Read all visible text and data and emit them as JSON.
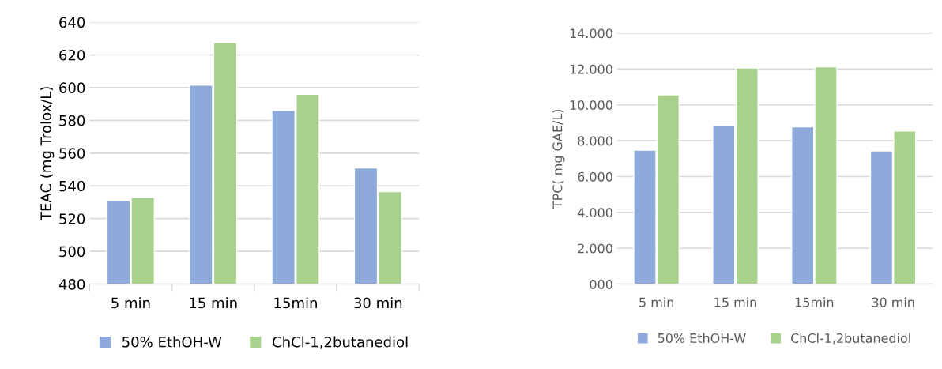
{
  "chart_data": [
    {
      "type": "bar",
      "ylabel": "TEAC (mg Trolox/L)",
      "categories": [
        "5 min",
        "15 min",
        "15min",
        "30 min"
      ],
      "series": [
        {
          "name": "50% EthOH-W",
          "color": "#8eaadb",
          "values": [
            531,
            601.5,
            586,
            551
          ]
        },
        {
          "name": "ChCl-1,2butanediol",
          "color": "#a9d18e",
          "values": [
            533,
            627.5,
            596,
            536.5
          ]
        }
      ],
      "ylim": [
        480,
        640
      ],
      "yticks": [
        480,
        500,
        520,
        540,
        560,
        580,
        600,
        620,
        640
      ],
      "grid": "y",
      "legend": "bottom"
    },
    {
      "type": "bar",
      "ylabel": "TPC( mg GAE/L)",
      "categories": [
        "5 min",
        "15 min",
        "15min",
        "30 min"
      ],
      "series": [
        {
          "name": "50% EthOH-W",
          "color": "#8eaadb",
          "values": [
            7470,
            8840,
            8770,
            7430
          ]
        },
        {
          "name": "ChCl-1,2butanediol",
          "color": "#a9d18e",
          "values": [
            10560,
            12060,
            12120,
            8540
          ]
        }
      ],
      "ylim": [
        0,
        14000
      ],
      "yticks": [
        {
          "value": 0,
          "label": "000"
        },
        {
          "value": 2000,
          "label": "2.000"
        },
        {
          "value": 4000,
          "label": "4.000"
        },
        {
          "value": 6000,
          "label": "6.000"
        },
        {
          "value": 8000,
          "label": "8.000"
        },
        {
          "value": 10000,
          "label": "10.000"
        },
        {
          "value": 12000,
          "label": "12.000"
        },
        {
          "value": 14000,
          "label": "14.000"
        }
      ],
      "grid": "y",
      "legend": "bottom"
    }
  ]
}
